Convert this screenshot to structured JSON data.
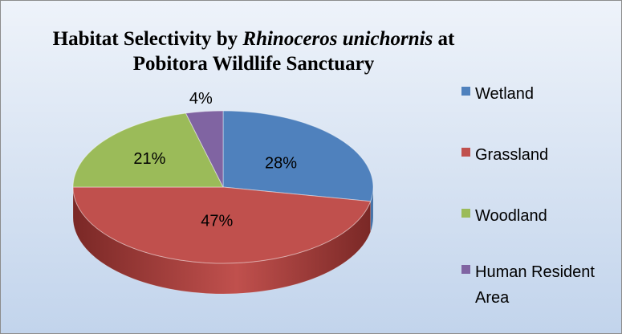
{
  "colors": {
    "background": "#d6e2f2",
    "border": "#8c8c8c"
  },
  "chart_data": {
    "type": "pie",
    "style": "3d",
    "title_parts": [
      "Habitat Selectivity by ",
      "Rhinoceros unichornis",
      " at Pobitora Wildlife Sanctuary"
    ],
    "categories": [
      "Wetland",
      "Grassland",
      "Woodland",
      "Human Resident Area"
    ],
    "values": [
      28,
      47,
      21,
      4
    ],
    "labels": [
      "28%",
      "47%",
      "21%",
      "4%"
    ],
    "colors": [
      "#4f81bd",
      "#c0504d",
      "#9bbb59",
      "#8064a2"
    ],
    "dark_colors": [
      "#36608f",
      "#7a2826",
      "#6a8a2e",
      "#58437a"
    ],
    "legend_position": "right"
  }
}
